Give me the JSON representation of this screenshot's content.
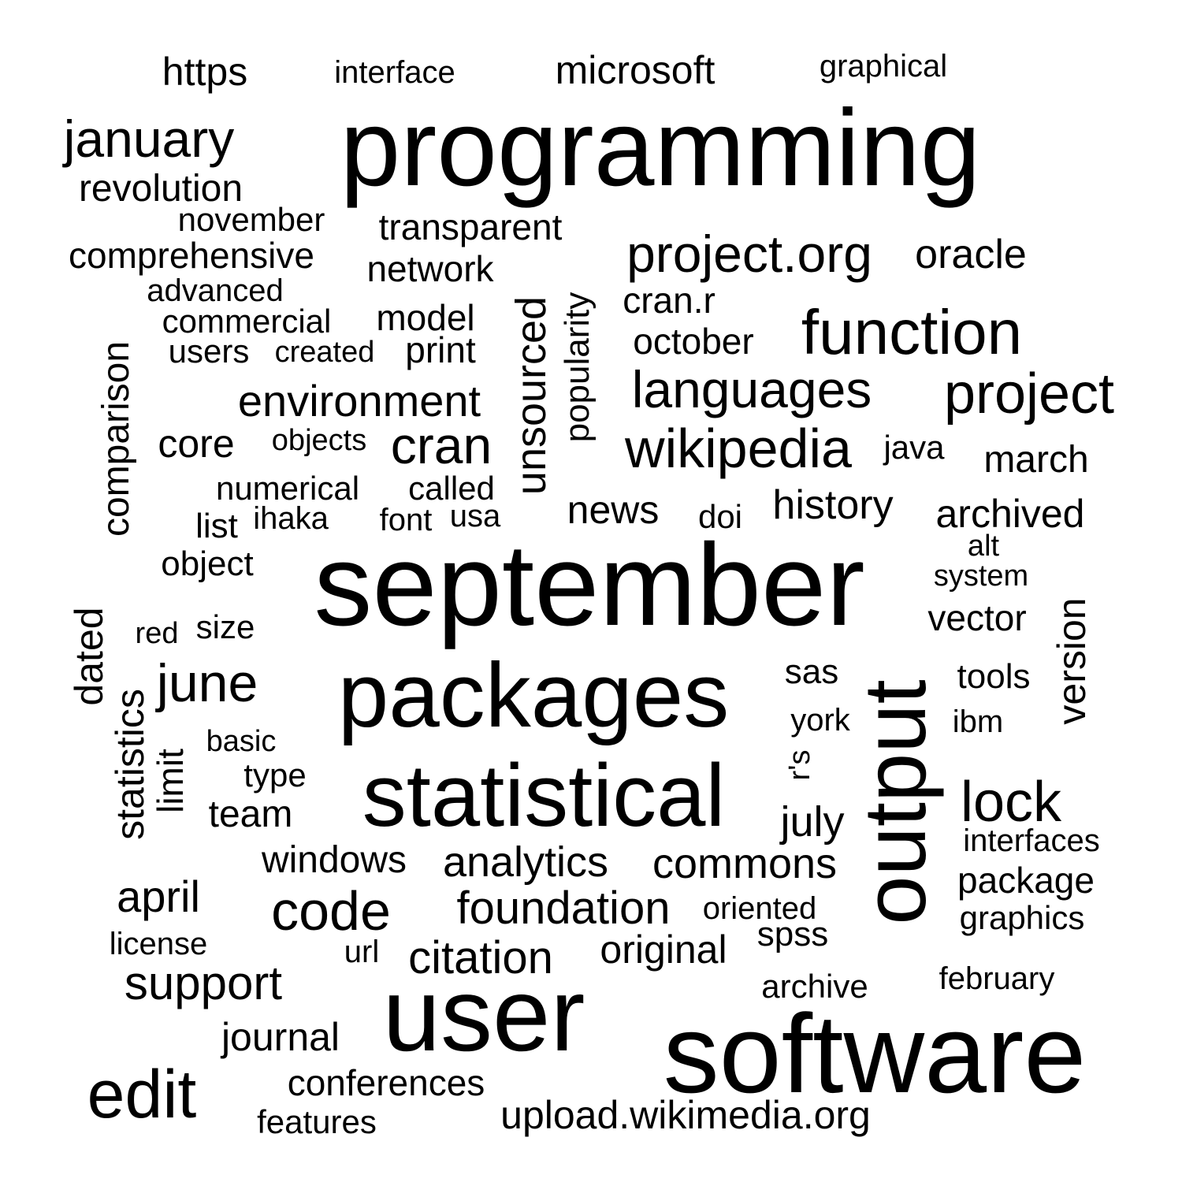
{
  "words": {
    "programming": "programming",
    "september": "september",
    "software": "software",
    "user": "user",
    "packages": "packages",
    "statistical": "statistical",
    "output": "output",
    "function": "function",
    "project": "project",
    "wikipedia": "wikipedia",
    "languages": "languages",
    "project_org": "project.org",
    "edit": "edit",
    "code": "code",
    "june": "june",
    "lock": "lock",
    "cran": "cran",
    "january": "january",
    "environment": "environment",
    "support": "support",
    "foundation": "foundation",
    "citation": "citation",
    "commons": "commons",
    "analytics": "analytics",
    "april": "april",
    "unsourced": "unsourced",
    "comparison": "comparison",
    "oracle": "oracle",
    "microsoft": "microsoft",
    "https": "https",
    "revolution": "revolution",
    "history": "history",
    "archived": "archived",
    "news": "news",
    "march": "march",
    "upload_wikimedia_org": "upload.wikimedia.org",
    "journal": "journal",
    "original": "original",
    "dated": "dated",
    "statistics": "statistics",
    "july": "july",
    "version": "version",
    "transparent": "transparent",
    "comprehensive": "comprehensive",
    "cran_r": "cran.r",
    "october": "october",
    "network": "network",
    "windows": "windows",
    "core": "core",
    "conferences": "conferences",
    "package": "package",
    "vector": "vector",
    "popularity": "popularity",
    "team": "team",
    "print": "print",
    "model": "model",
    "commercial": "commercial",
    "object": "object",
    "numerical": "numerical",
    "graphics": "graphics",
    "features": "features",
    "archive": "archive",
    "spss": "spss",
    "tools": "tools",
    "revolution_dup": "",
    "november": "november",
    "interface": "interface",
    "graphical": "graphical",
    "users": "users",
    "created": "created",
    "advanced": "advanced",
    "objects": "objects",
    "called": "called",
    "java": "java",
    "doi": "doi",
    "list": "list",
    "ihaka": "ihaka",
    "font": "font",
    "usa": "usa",
    "size": "size",
    "red": "red",
    "basic": "basic",
    "type": "type",
    "limit": "limit",
    "sas": "sas",
    "york": "york",
    "r_s": "r's",
    "ibm": "ibm",
    "interfaces": "interfaces",
    "oriented": "oriented",
    "license": "license",
    "url": "url",
    "february": "february",
    "alt": "alt",
    "system": "system"
  }
}
